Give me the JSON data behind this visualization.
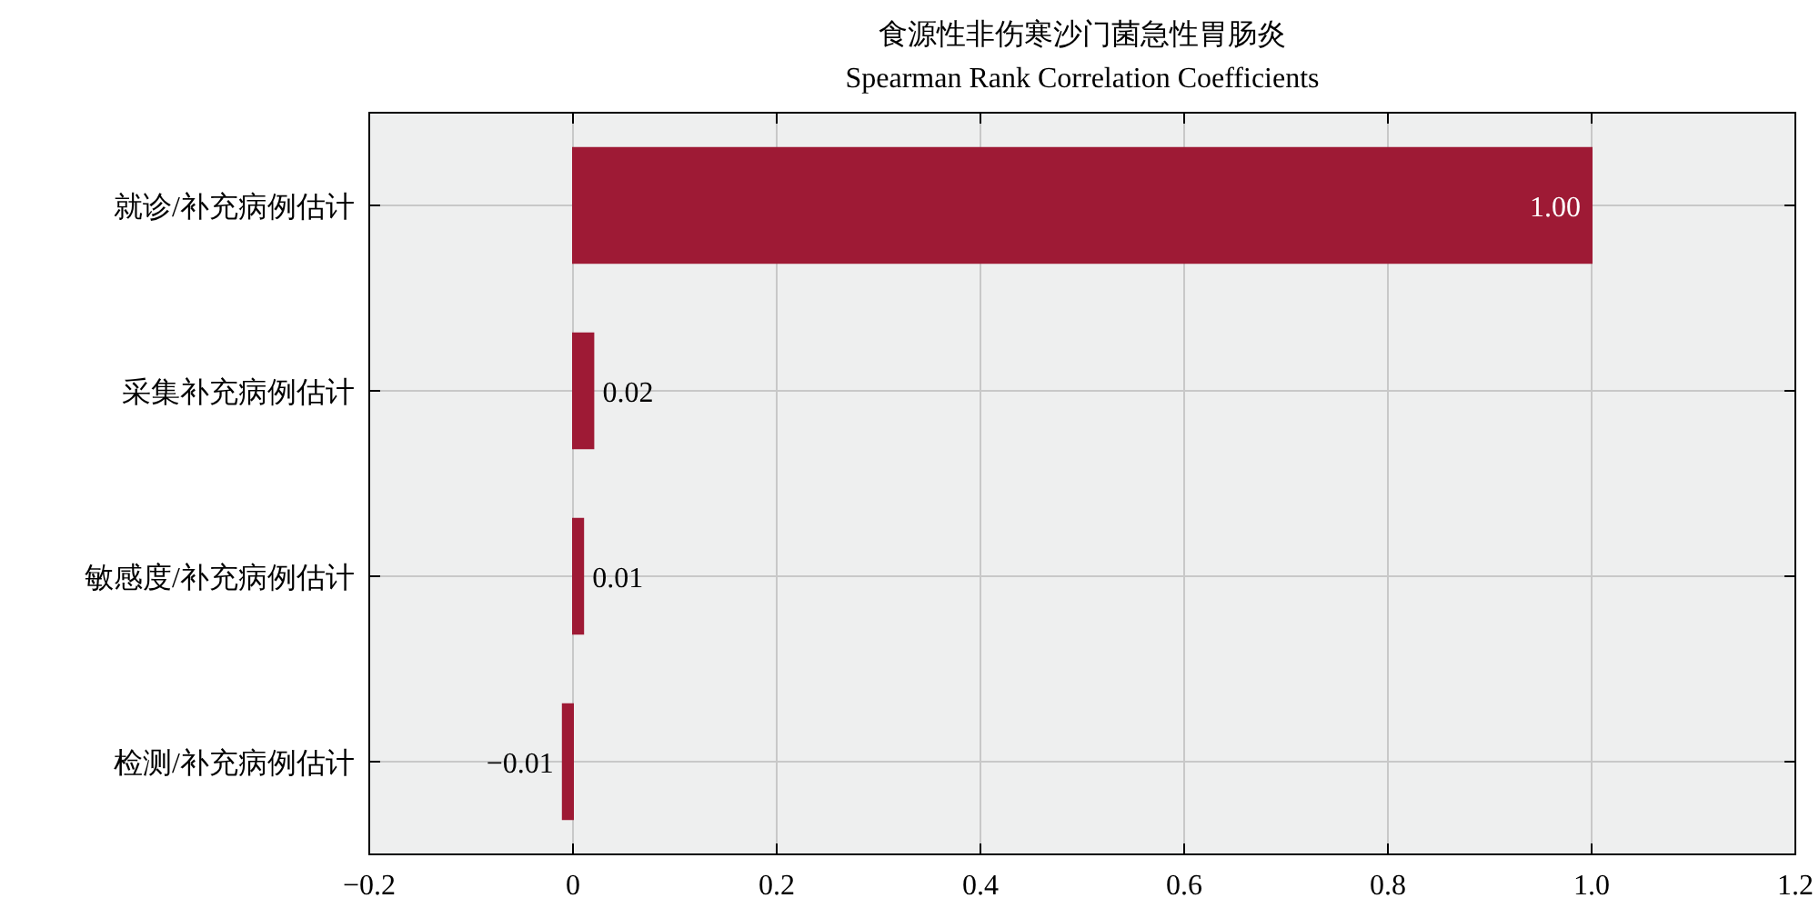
{
  "chart_data": {
    "type": "bar",
    "orientation": "horizontal",
    "title": "食源性非伤寒沙门菌急性胃肠炎",
    "subtitle": "Spearman Rank Correlation Coefficients",
    "categories": [
      "就诊/补充病例估计",
      "采集补充病例估计",
      "敏感度/补充病例估计",
      "检测/补充病例估计"
    ],
    "values": [
      1.0,
      0.02,
      0.01,
      -0.01
    ],
    "value_labels": [
      "1.00",
      "0.02",
      "0.01",
      "−0.01"
    ],
    "color": "#9e1a35",
    "xlim": [
      -0.2,
      1.2
    ],
    "xticks": [
      {
        "value": -0.2,
        "label": "−0.2"
      },
      0,
      0.2,
      0.4,
      0.6,
      0.8,
      {
        "value": 1.0,
        "label": "1.0"
      },
      1.2
    ],
    "grid": true
  }
}
